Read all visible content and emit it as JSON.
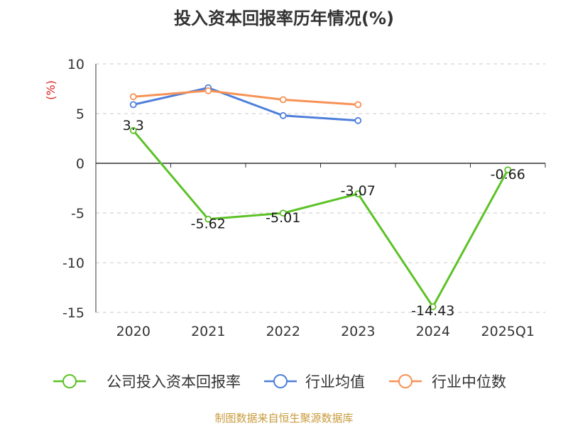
{
  "chart_data": {
    "type": "line",
    "title": "投入资本回报率历年情况(%)",
    "ylabel": "(%)",
    "xlabel": "",
    "categories": [
      "2020",
      "2021",
      "2022",
      "2023",
      "2024",
      "2025Q1"
    ],
    "ylim": [
      -15,
      10
    ],
    "yticks": [
      10,
      5,
      0,
      -5,
      -10,
      -15
    ],
    "grid": true,
    "legend_position": "bottom",
    "series": [
      {
        "name": "公司投入资本回报率",
        "color": "#5cc227",
        "values": [
          3.3,
          -5.62,
          -5.01,
          -3.07,
          -14.43,
          -0.66
        ],
        "labels": [
          "3.3",
          "-5.62",
          "-5.01",
          "-3.07",
          "-14.43",
          "-0.66"
        ]
      },
      {
        "name": "行业均值",
        "color": "#4e7fdb",
        "values": [
          5.9,
          7.6,
          4.8,
          4.3,
          null,
          null
        ]
      },
      {
        "name": "行业中位数",
        "color": "#f79256",
        "values": [
          6.7,
          7.3,
          6.4,
          5.9,
          null,
          null
        ]
      }
    ]
  },
  "footer": {
    "source": "制图数据来自恒生聚源数据库"
  }
}
